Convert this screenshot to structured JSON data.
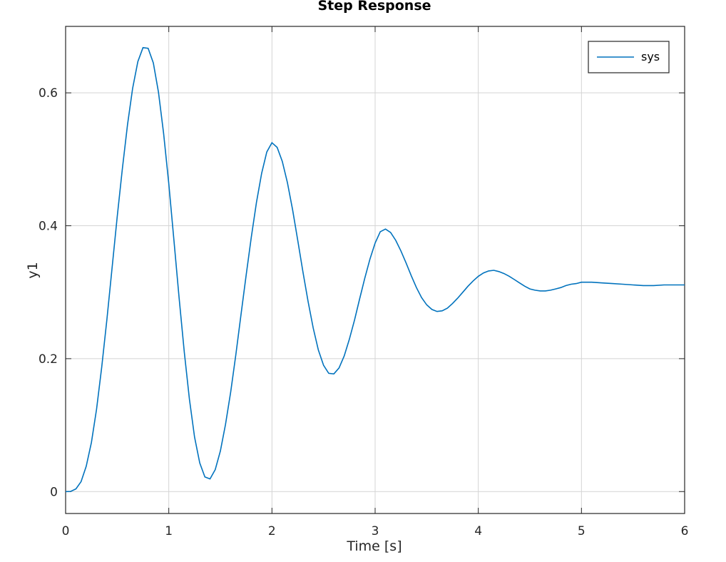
{
  "chart_data": {
    "type": "line",
    "title": "Step Response",
    "xlabel": "Time [s]",
    "ylabel": "y1",
    "xlim": [
      0,
      6
    ],
    "ylim": [
      -0.033,
      0.7
    ],
    "xticks": [
      0,
      1,
      2,
      3,
      4,
      5,
      6
    ],
    "yticks": [
      0,
      0.2,
      0.4,
      0.6
    ],
    "xtick_labels": [
      "0",
      "1",
      "2",
      "3",
      "4",
      "5",
      "6"
    ],
    "ytick_labels": [
      "0",
      "0.2",
      "0.4",
      "0.6"
    ],
    "grid": true,
    "legend_position": "top-right",
    "colors": {
      "line": "#0072bd",
      "grid": "#d4d4d4",
      "axis": "#262626"
    },
    "series": [
      {
        "name": "sys",
        "x": [
          0,
          0.05,
          0.1,
          0.15,
          0.2,
          0.25,
          0.3,
          0.35,
          0.4,
          0.45,
          0.5,
          0.55,
          0.6,
          0.65,
          0.7,
          0.75,
          0.8,
          0.85,
          0.9,
          0.95,
          1.0,
          1.05,
          1.1,
          1.15,
          1.2,
          1.25,
          1.3,
          1.35,
          1.4,
          1.45,
          1.5,
          1.55,
          1.6,
          1.65,
          1.7,
          1.75,
          1.8,
          1.85,
          1.9,
          1.95,
          2.0,
          2.05,
          2.1,
          2.15,
          2.2,
          2.25,
          2.3,
          2.35,
          2.4,
          2.45,
          2.5,
          2.55,
          2.6,
          2.65,
          2.7,
          2.75,
          2.8,
          2.85,
          2.9,
          2.95,
          3.0,
          3.05,
          3.1,
          3.15,
          3.2,
          3.25,
          3.3,
          3.35,
          3.4,
          3.45,
          3.5,
          3.55,
          3.6,
          3.65,
          3.7,
          3.75,
          3.8,
          3.85,
          3.9,
          3.95,
          4.0,
          4.05,
          4.1,
          4.15,
          4.2,
          4.25,
          4.3,
          4.35,
          4.4,
          4.45,
          4.5,
          4.55,
          4.6,
          4.65,
          4.7,
          4.75,
          4.8,
          4.85,
          4.9,
          4.95,
          5.0,
          5.1,
          5.2,
          5.3,
          5.4,
          5.5,
          5.6,
          5.7,
          5.8,
          5.9,
          6.0
        ],
        "y": [
          0,
          0.0003,
          0.004,
          0.015,
          0.038,
          0.074,
          0.124,
          0.187,
          0.259,
          0.336,
          0.413,
          0.486,
          0.552,
          0.607,
          0.647,
          0.668,
          0.667,
          0.645,
          0.601,
          0.539,
          0.463,
          0.378,
          0.292,
          0.21,
          0.139,
          0.082,
          0.043,
          0.022,
          0.019,
          0.033,
          0.061,
          0.101,
          0.15,
          0.206,
          0.266,
          0.326,
          0.383,
          0.435,
          0.479,
          0.511,
          0.525,
          0.518,
          0.497,
          0.465,
          0.424,
          0.378,
          0.331,
          0.286,
          0.246,
          0.213,
          0.19,
          0.178,
          0.177,
          0.186,
          0.204,
          0.229,
          0.258,
          0.29,
          0.321,
          0.35,
          0.374,
          0.391,
          0.395,
          0.39,
          0.378,
          0.362,
          0.344,
          0.325,
          0.307,
          0.292,
          0.281,
          0.274,
          0.271,
          0.272,
          0.276,
          0.283,
          0.291,
          0.3,
          0.309,
          0.317,
          0.324,
          0.329,
          0.332,
          0.333,
          0.331,
          0.328,
          0.324,
          0.319,
          0.314,
          0.309,
          0.305,
          0.303,
          0.302,
          0.302,
          0.303,
          0.305,
          0.307,
          0.31,
          0.312,
          0.313,
          0.315,
          0.315,
          0.314,
          0.313,
          0.312,
          0.311,
          0.31,
          0.31,
          0.311,
          0.311,
          0.311
        ]
      }
    ]
  }
}
